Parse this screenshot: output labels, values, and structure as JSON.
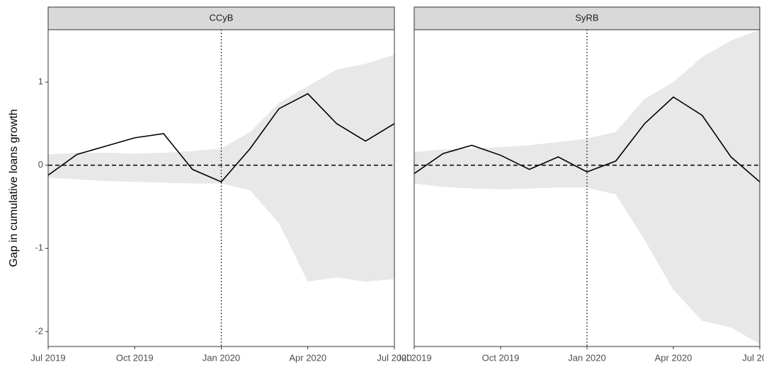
{
  "chart_data": {
    "type": "line",
    "y_label": "Gap in cumulative loans growth",
    "x": [
      "2019-07",
      "2019-08",
      "2019-09",
      "2019-10",
      "2019-11",
      "2019-12",
      "2020-01",
      "2020-02",
      "2020-03",
      "2020-04",
      "2020-05",
      "2020-06",
      "2020-07"
    ],
    "xlim": [
      "2019-07",
      "2020-07"
    ],
    "xticks": [
      {
        "value": "2019-07",
        "label": "Jul 2019"
      },
      {
        "value": "2019-10",
        "label": "Oct 2019"
      },
      {
        "value": "2020-01",
        "label": "Jan 2020"
      },
      {
        "value": "2020-04",
        "label": "Apr 2020"
      },
      {
        "value": "2020-07",
        "label": "Jul 2020"
      }
    ],
    "ylim": [
      -2.18,
      1.63
    ],
    "yticks": [
      -2,
      -1,
      0,
      1
    ],
    "hline": 0,
    "vline": "2020-01",
    "line_color": "#000000",
    "band_color": "#e8e8e8",
    "panels": [
      {
        "title": "CCyB",
        "values": [
          -0.12,
          0.13,
          0.23,
          0.33,
          0.38,
          -0.05,
          -0.2,
          0.2,
          0.68,
          0.86,
          0.5,
          0.29,
          0.5
        ],
        "upper": [
          0.13,
          0.15,
          0.15,
          0.14,
          0.15,
          0.17,
          0.2,
          0.4,
          0.75,
          0.95,
          1.15,
          1.22,
          1.33
        ],
        "lower": [
          -0.15,
          -0.17,
          -0.19,
          -0.2,
          -0.21,
          -0.22,
          -0.22,
          -0.3,
          -0.7,
          -1.4,
          -1.35,
          -1.4,
          -1.37
        ]
      },
      {
        "title": "SyRB",
        "values": [
          -0.1,
          0.14,
          0.24,
          0.12,
          -0.05,
          0.1,
          -0.08,
          0.05,
          0.5,
          0.82,
          0.6,
          0.1,
          -0.2
        ],
        "upper": [
          0.16,
          0.19,
          0.2,
          0.22,
          0.24,
          0.28,
          0.32,
          0.4,
          0.8,
          1.0,
          1.3,
          1.5,
          1.63
        ],
        "lower": [
          -0.22,
          -0.26,
          -0.28,
          -0.29,
          -0.28,
          -0.27,
          -0.27,
          -0.35,
          -0.9,
          -1.5,
          -1.87,
          -1.95,
          -2.15
        ]
      }
    ]
  }
}
